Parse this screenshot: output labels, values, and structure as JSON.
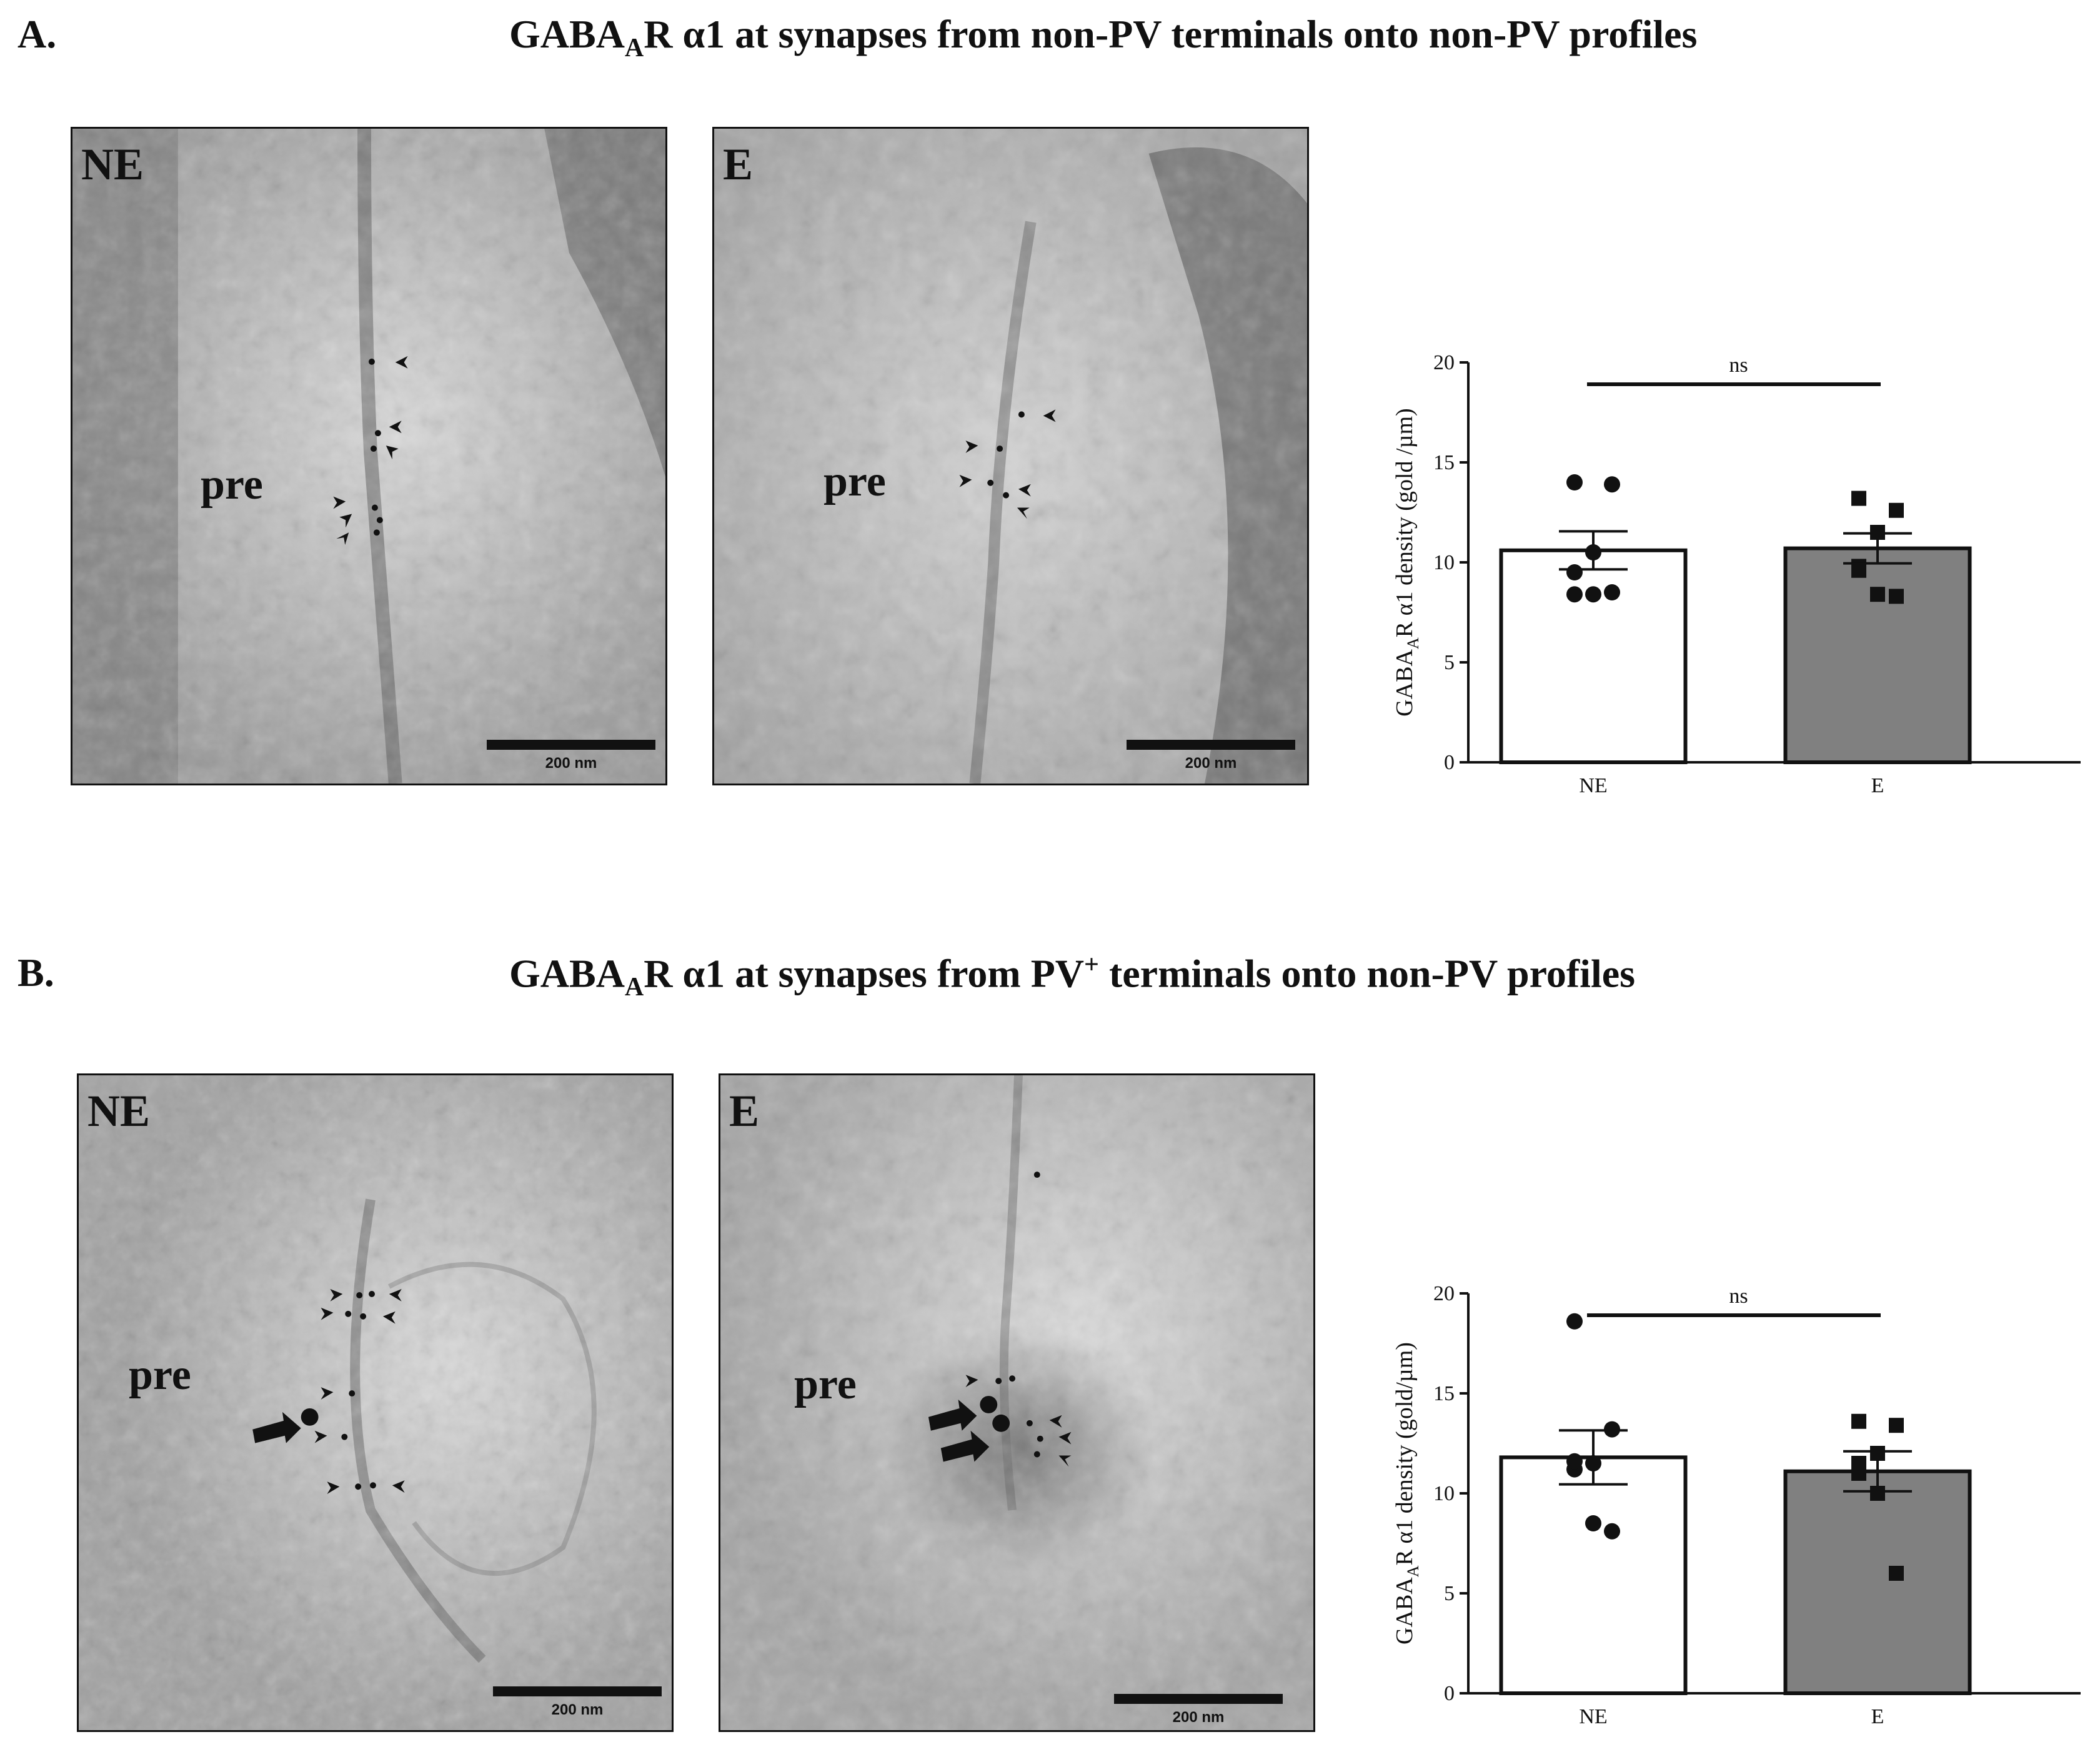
{
  "panels": [
    {
      "letter": "A.",
      "title_prefix": "GABA",
      "title_sub": "A",
      "title_mid": "R α1 at synapses from ",
      "title_sup_base": "",
      "title_sup": "",
      "title_suffix": "non-PV terminals onto non-PV profiles",
      "images": [
        {
          "label": "NE",
          "pre": "pre",
          "scale": "200 nm"
        },
        {
          "label": "E",
          "pre": "pre",
          "scale": "200 nm"
        }
      ],
      "chart_data": {
        "type": "bar",
        "categories": [
          "NE",
          "E"
        ],
        "values": [
          10.6,
          10.7
        ],
        "sem": [
          0.95,
          0.75
        ],
        "points": [
          [
            14.0,
            13.9,
            10.5,
            9.5,
            8.4,
            8.4,
            8.5
          ],
          [
            13.2,
            12.6,
            11.5,
            9.8,
            9.6,
            8.4,
            8.3
          ]
        ],
        "marker_styles": [
          "circle",
          "square"
        ],
        "bar_fills": [
          "#ffffff",
          "#808080"
        ],
        "ylabel_prefix": "GABA",
        "ylabel_sub": "A",
        "ylabel_suffix": "R α1 density (gold /µm)",
        "yticks": [
          0,
          5,
          10,
          15,
          20
        ],
        "ylim": [
          0,
          20
        ],
        "significance": "ns"
      }
    },
    {
      "letter": "B.",
      "title_prefix": "GABA",
      "title_sub": "A",
      "title_mid": "R α1 at synapses from ",
      "title_sup_base": "PV",
      "title_sup": "+",
      "title_suffix": " terminals onto non-PV profiles",
      "images": [
        {
          "label": "NE",
          "pre": "pre",
          "scale": "200 nm"
        },
        {
          "label": "E",
          "pre": "pre",
          "scale": "200 nm"
        }
      ],
      "chart_data": {
        "type": "bar",
        "categories": [
          "NE",
          "E"
        ],
        "values": [
          11.8,
          11.1
        ],
        "sem": [
          1.35,
          1.0
        ],
        "points": [
          [
            18.6,
            13.2,
            11.5,
            11.2,
            11.6,
            8.5,
            8.1
          ],
          [
            13.6,
            13.4,
            12.0,
            11.5,
            11.0,
            10.0,
            6.0
          ]
        ],
        "marker_styles": [
          "circle",
          "square"
        ],
        "bar_fills": [
          "#ffffff",
          "#808080"
        ],
        "ylabel_prefix": "GABA",
        "ylabel_sub": "A",
        "ylabel_suffix": "R α1 density (gold/µm)",
        "yticks": [
          0,
          5,
          10,
          15,
          20
        ],
        "ylim": [
          0,
          20
        ],
        "significance": "ns"
      }
    }
  ]
}
